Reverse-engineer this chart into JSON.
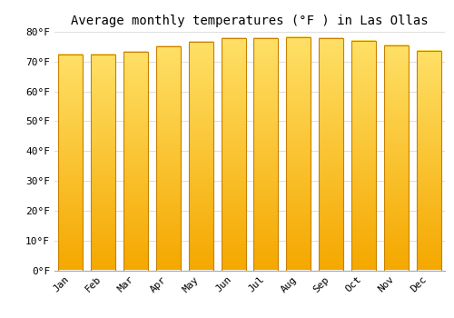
{
  "title": "Average monthly temperatures (°F ) in Las Ollas",
  "months": [
    "Jan",
    "Feb",
    "Mar",
    "Apr",
    "May",
    "Jun",
    "Jul",
    "Aug",
    "Sep",
    "Oct",
    "Nov",
    "Dec"
  ],
  "values": [
    72.3,
    72.3,
    73.4,
    75.0,
    76.5,
    78.0,
    78.0,
    78.3,
    78.0,
    77.0,
    75.5,
    73.5
  ],
  "bar_color_top": "#FFE066",
  "bar_color_bottom": "#F5A800",
  "bar_edge_color": "#C88000",
  "background_color": "#ffffff",
  "grid_color": "#dddddd",
  "ylim": [
    0,
    80
  ],
  "yticks": [
    0,
    10,
    20,
    30,
    40,
    50,
    60,
    70,
    80
  ],
  "ytick_labels": [
    "0°F",
    "10°F",
    "20°F",
    "30°F",
    "40°F",
    "50°F",
    "60°F",
    "70°F",
    "80°F"
  ],
  "title_fontsize": 10,
  "tick_fontsize": 8,
  "font_family": "monospace",
  "bar_width": 0.75
}
